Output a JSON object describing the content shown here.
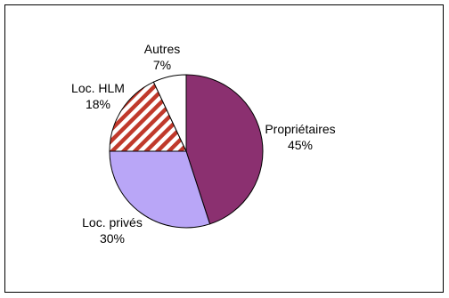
{
  "chart_data": {
    "type": "pie",
    "title": "",
    "slices": [
      {
        "label": "Propriétaires",
        "value": 45,
        "value_label": "45%",
        "color": "#8b3070",
        "pattern": "solid"
      },
      {
        "label": "Loc. privés",
        "value": 30,
        "value_label": "30%",
        "color": "#b9a6f7",
        "pattern": "solid"
      },
      {
        "label": "Loc. HLM",
        "value": 18,
        "value_label": "18%",
        "color": "#c0392b",
        "pattern": "diagonal-stripes"
      },
      {
        "label": "Autres",
        "value": 7,
        "value_label": "7%",
        "color": "#ffffff",
        "pattern": "solid"
      }
    ],
    "start_angle": "12 o'clock",
    "direction": "clockwise",
    "legend": "none"
  }
}
